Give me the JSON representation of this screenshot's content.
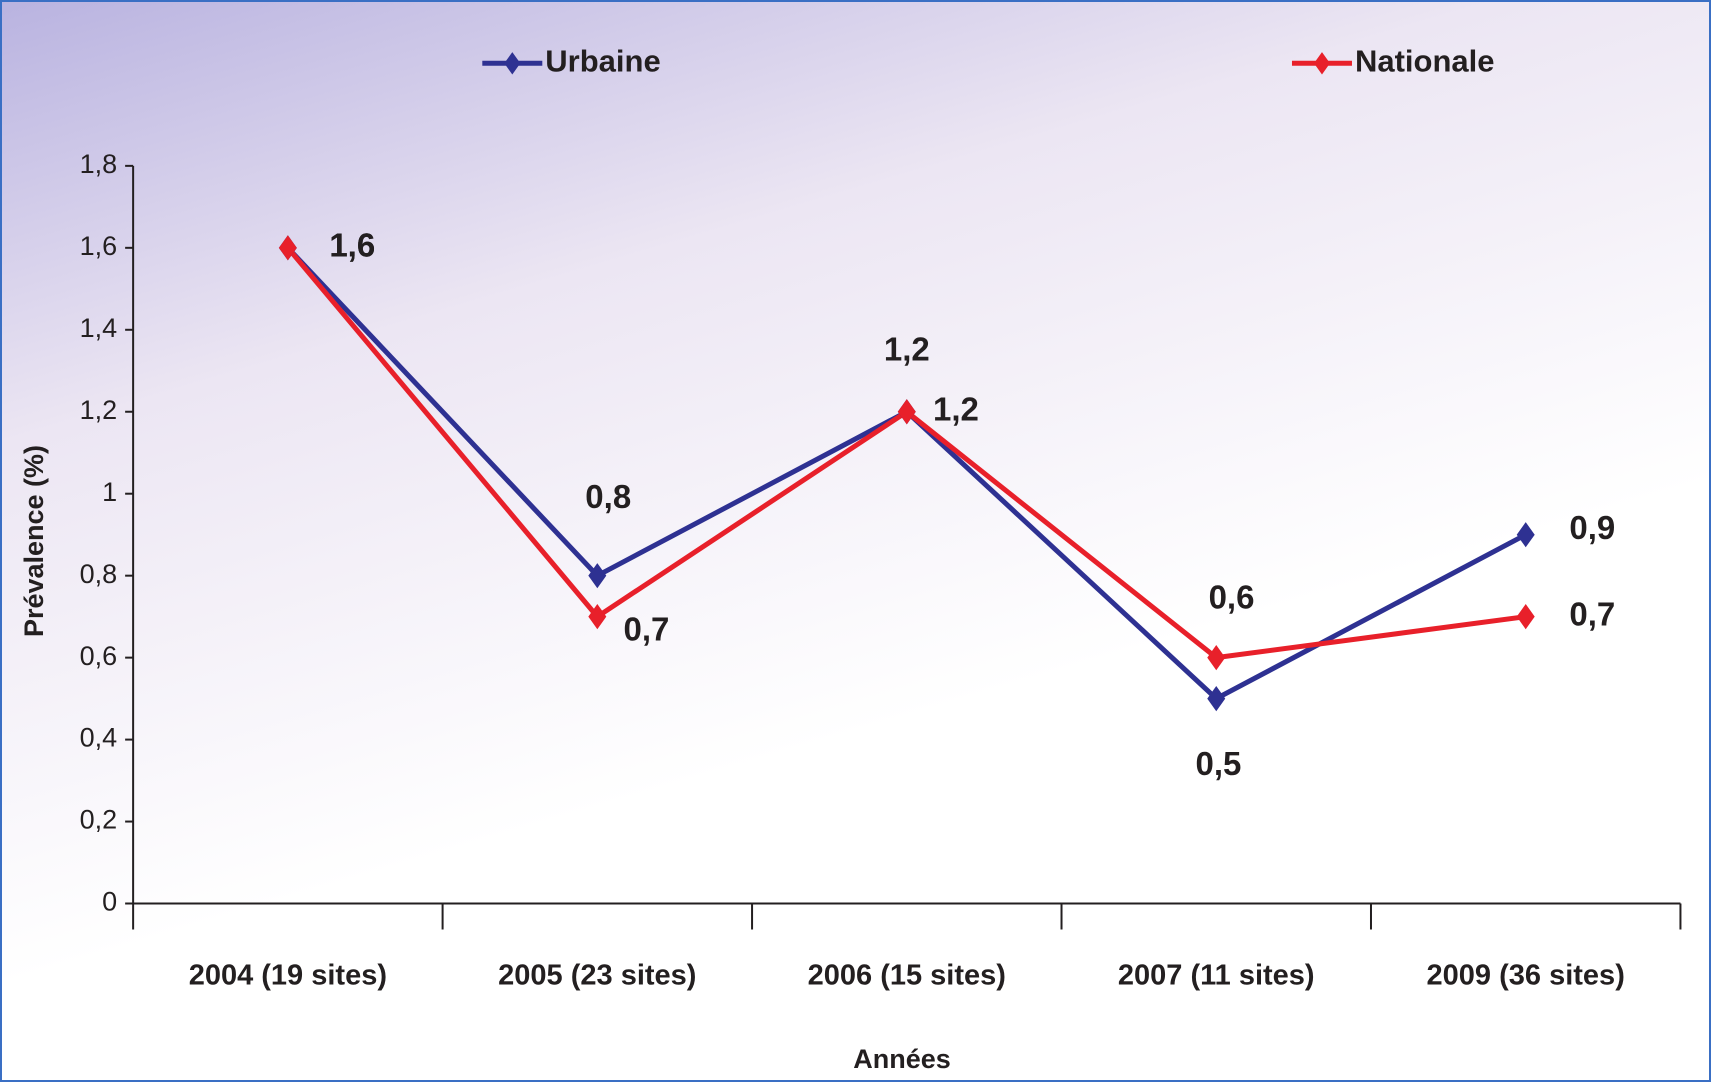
{
  "chart_data": {
    "type": "line",
    "x_label": "Années",
    "y_label": "Prévalence (%)",
    "categories": [
      "2004 (19 sites)",
      "2005 (23 sites)",
      "2006 (15 sites)",
      "2007 (11 sites)",
      "2009 (36 sites)"
    ],
    "series": [
      {
        "name": "Urbaine",
        "color": "#2e3192",
        "values": [
          1.6,
          0.8,
          1.2,
          0.5,
          0.9
        ],
        "value_labels": [
          "1,6",
          "0,8",
          "1,2",
          "0,5",
          "0,9"
        ]
      },
      {
        "name": "Nationale",
        "color": "#e8202a",
        "values": [
          1.6,
          0.7,
          1.2,
          0.6,
          0.7
        ],
        "value_labels": [
          "1,6",
          "0,7",
          "1,2",
          "0,6",
          "0,7"
        ]
      }
    ],
    "ylim": [
      0,
      1.8
    ],
    "yticks": [
      0,
      {
        "value": 0.2,
        "label": "0,2"
      },
      {
        "value": 0.4,
        "label": "0,4"
      },
      {
        "value": 0.6,
        "label": "0,6"
      },
      {
        "value": 0.8,
        "label": "0,8"
      },
      1,
      {
        "value": 1.2,
        "label": "1,2"
      },
      {
        "value": 1.4,
        "label": "1,4"
      },
      {
        "value": 1.6,
        "label": "1,6"
      },
      {
        "value": 1.8,
        "label": "1,8"
      }
    ],
    "grid": false,
    "legend": "top"
  }
}
